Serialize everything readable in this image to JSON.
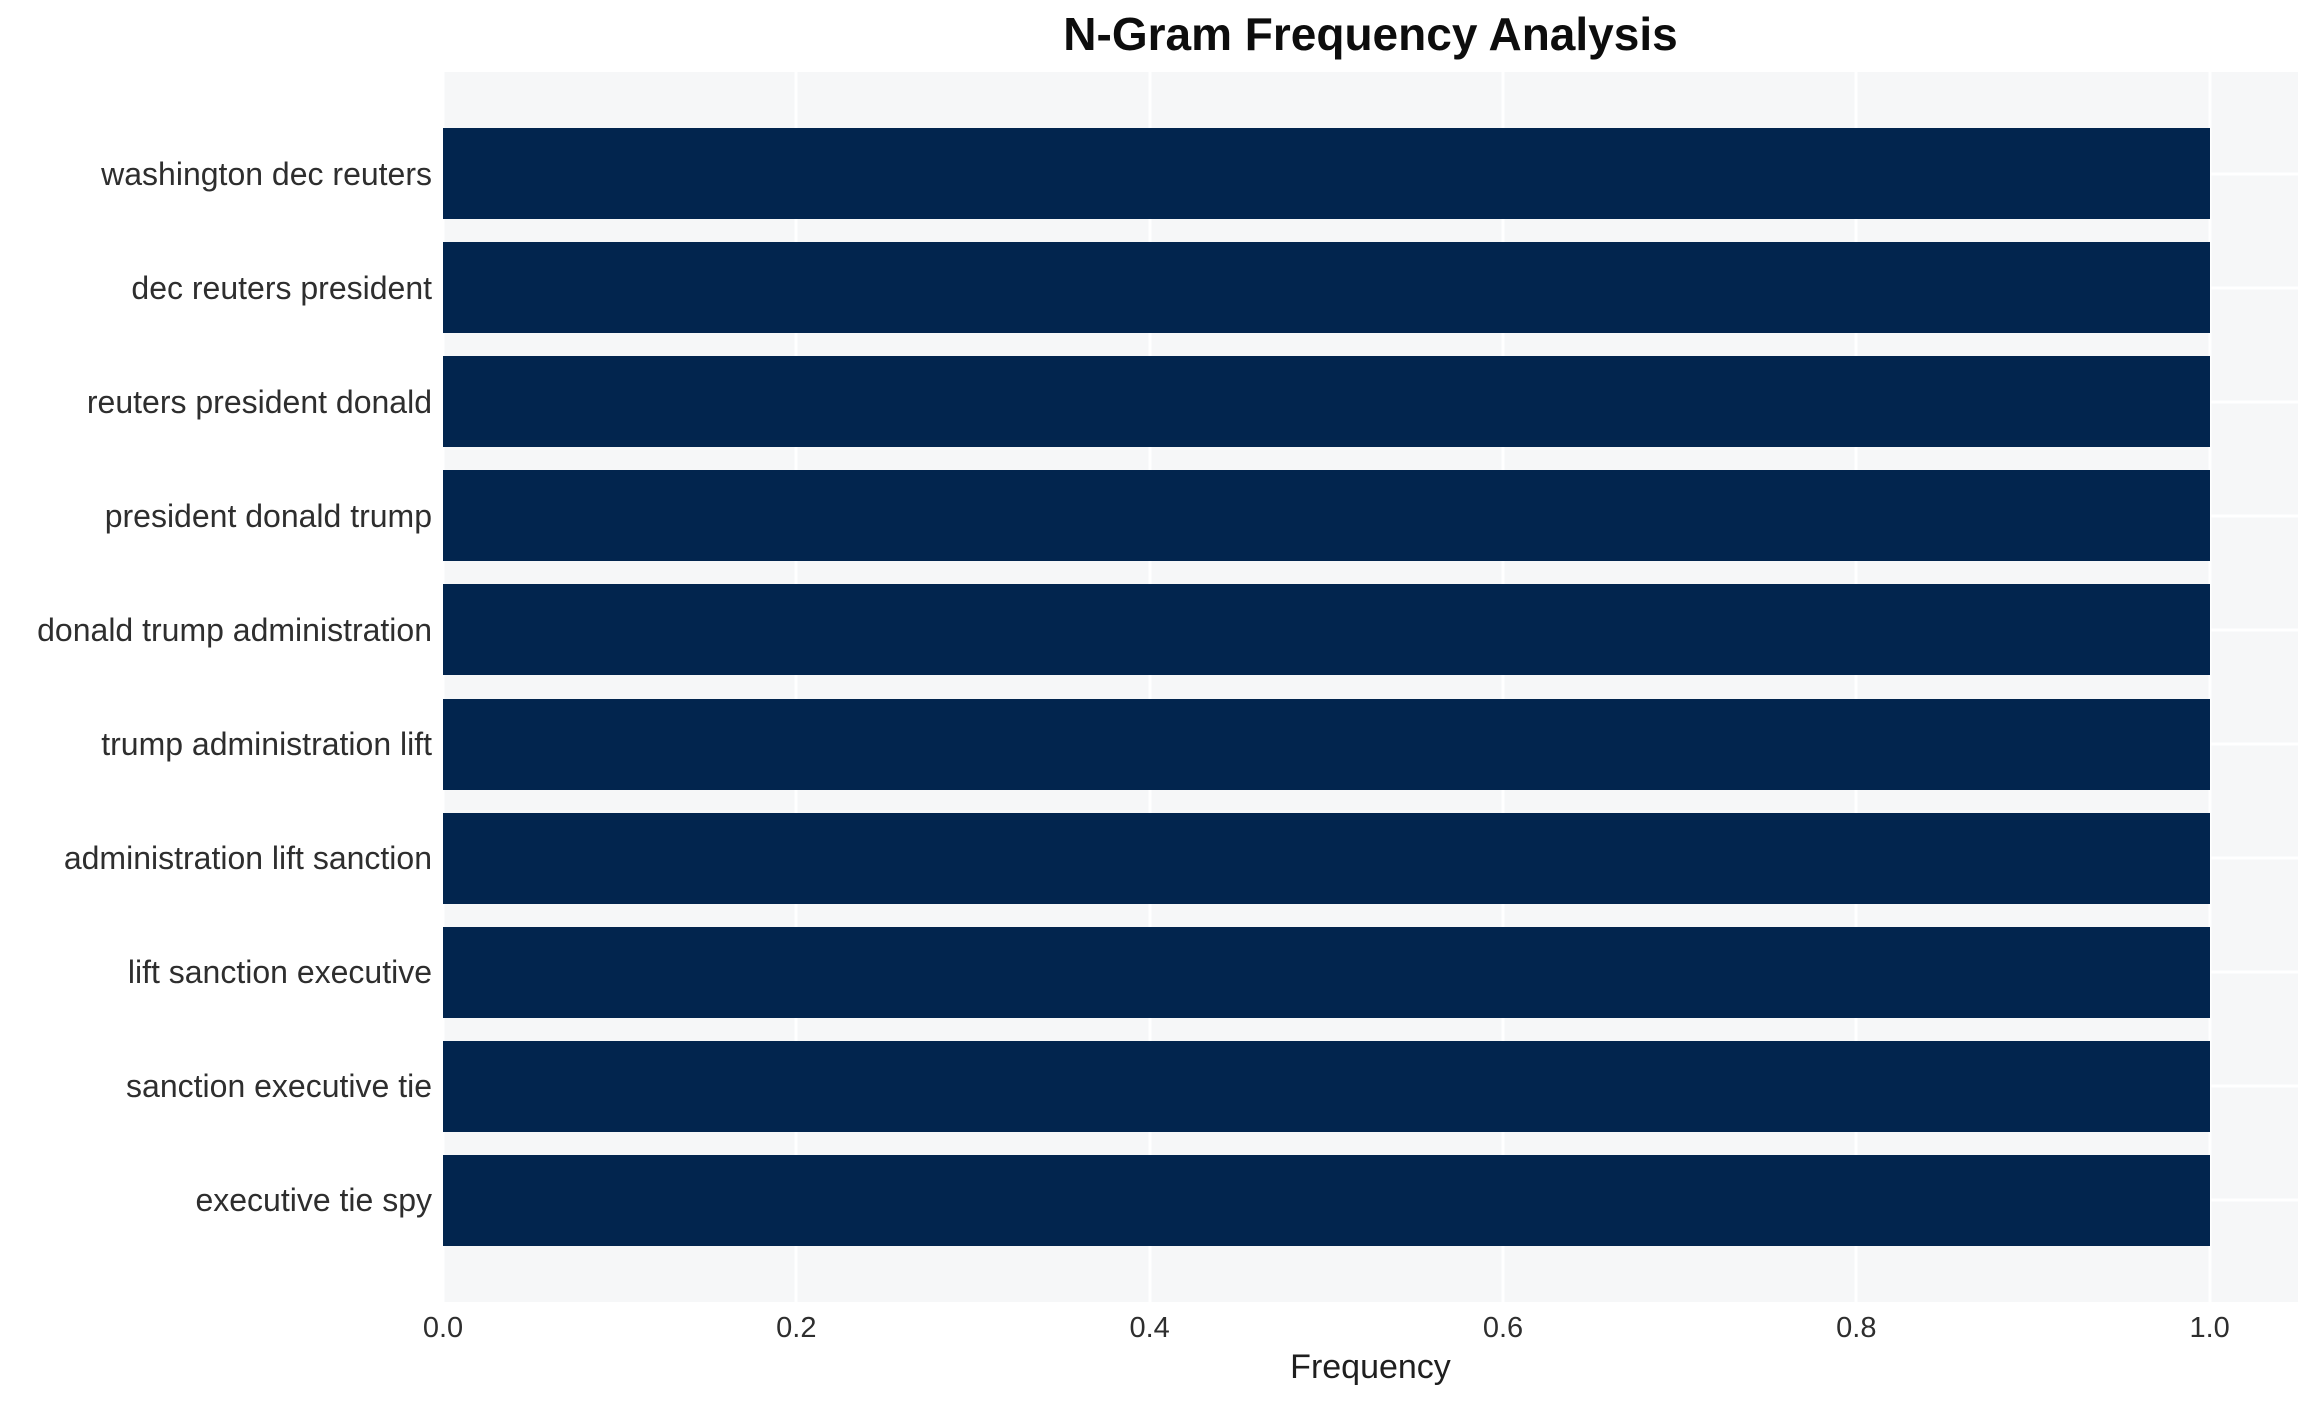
{
  "colors": {
    "bar": "#02254e",
    "plot_background": "#f6f7f8",
    "gridline": "#ffffff",
    "title_text": "#0d0d0d",
    "label_text": "#2e2e2e"
  },
  "chart_data": {
    "type": "bar",
    "orientation": "horizontal",
    "title": "N-Gram Frequency Analysis",
    "xlabel": "Frequency",
    "ylabel": "",
    "categories": [
      "washington dec reuters",
      "dec reuters president",
      "reuters president donald",
      "president donald trump",
      "donald trump administration",
      "trump administration lift",
      "administration lift sanction",
      "lift sanction executive",
      "sanction executive tie",
      "executive tie spy"
    ],
    "values": [
      1.0,
      1.0,
      1.0,
      1.0,
      1.0,
      1.0,
      1.0,
      1.0,
      1.0,
      1.0
    ],
    "xlim": [
      0,
      1.05
    ],
    "xticks": [
      0.0,
      0.2,
      0.4,
      0.6,
      0.8,
      1.0
    ],
    "xtick_labels": [
      "0.0",
      "0.2",
      "0.4",
      "0.6",
      "0.8",
      "1.0"
    ],
    "grid": true,
    "legend": false,
    "bar_color": "#02254e"
  }
}
